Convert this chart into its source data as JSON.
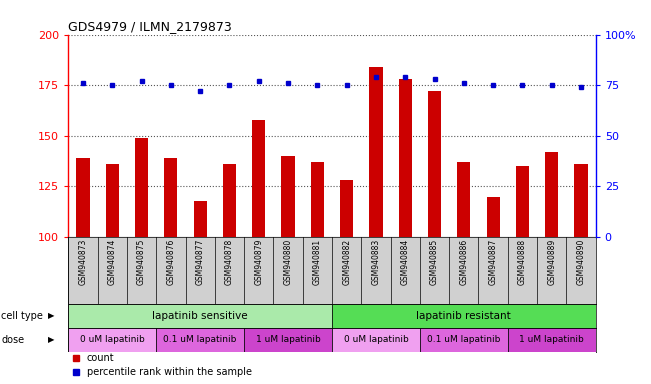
{
  "title": "GDS4979 / ILMN_2179873",
  "samples": [
    "GSM940873",
    "GSM940874",
    "GSM940875",
    "GSM940876",
    "GSM940877",
    "GSM940878",
    "GSM940879",
    "GSM940880",
    "GSM940881",
    "GSM940882",
    "GSM940883",
    "GSM940884",
    "GSM940885",
    "GSM940886",
    "GSM940887",
    "GSM940888",
    "GSM940889",
    "GSM940890"
  ],
  "counts": [
    139,
    136,
    149,
    139,
    118,
    136,
    158,
    140,
    137,
    128,
    184,
    178,
    172,
    137,
    120,
    135,
    142,
    136
  ],
  "percentiles": [
    76,
    75,
    77,
    75,
    72,
    75,
    77,
    76,
    75,
    75,
    79,
    79,
    78,
    76,
    75,
    75,
    75,
    74
  ],
  "bar_color": "#cc0000",
  "dot_color": "#0000cc",
  "ylim_left": [
    100,
    200
  ],
  "ylim_right": [
    0,
    100
  ],
  "yticks_left": [
    100,
    125,
    150,
    175,
    200
  ],
  "yticks_right": [
    0,
    25,
    50,
    75,
    100
  ],
  "cell_type_groups": [
    {
      "label": "lapatinib sensitive",
      "start": 0,
      "end": 9,
      "color": "#aaeaaa"
    },
    {
      "label": "lapatinib resistant",
      "start": 9,
      "end": 18,
      "color": "#55dd55"
    }
  ],
  "dose_groups": [
    {
      "label": "0 uM lapatinib",
      "start": 0,
      "end": 3,
      "color": "#f0a0f0"
    },
    {
      "label": "0.1 uM lapatinib",
      "start": 3,
      "end": 6,
      "color": "#dd66dd"
    },
    {
      "label": "1 uM lapatinib",
      "start": 6,
      "end": 9,
      "color": "#cc44cc"
    },
    {
      "label": "0 uM lapatinib",
      "start": 9,
      "end": 12,
      "color": "#f0a0f0"
    },
    {
      "label": "0.1 uM lapatinib",
      "start": 12,
      "end": 15,
      "color": "#dd66dd"
    },
    {
      "label": "1 uM lapatinib",
      "start": 15,
      "end": 18,
      "color": "#cc44cc"
    }
  ],
  "sample_bg": "#d0d0d0",
  "bg_color": "#ffffff",
  "grid_color": "#555555",
  "bar_width": 0.45
}
